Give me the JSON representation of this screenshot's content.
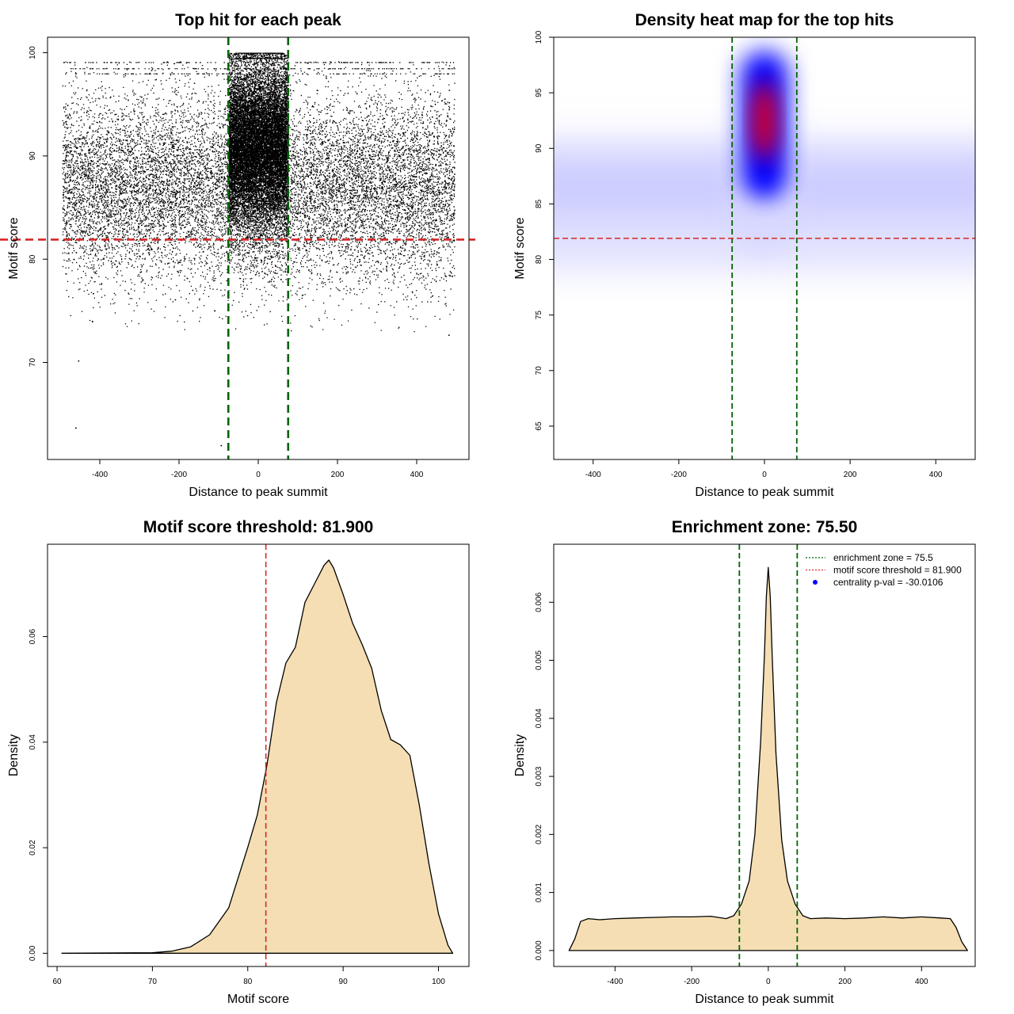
{
  "chart_data": [
    {
      "type": "scatter",
      "title": "Top hit for each peak",
      "xlabel": "Distance to peak summit",
      "ylabel": "Motif score",
      "xlim": [
        -532,
        532
      ],
      "ylim": [
        60.6,
        101.5
      ],
      "xticks": [
        -400,
        -200,
        0,
        200,
        400
      ],
      "yticks": [
        70,
        80,
        90,
        100
      ],
      "xtick_labels": [
        "-400",
        "-200",
        "0",
        "200",
        "400"
      ],
      "ytick_labels": [
        "70",
        "80",
        "90",
        "100"
      ],
      "vlines": [
        -75.5,
        75.5
      ],
      "hline": 81.9,
      "line_colors": {
        "enrichment": "#006400",
        "threshold": "#d62728"
      },
      "points_description_background": {
        "x_range": [
          -495,
          495
        ],
        "score_mean": 87,
        "score_sd": 4.5
      },
      "points_description_central": {
        "x_range": [
          -75,
          75
        ],
        "score_mean": 91,
        "score_sd": 4
      },
      "outliers": [
        [
          -455,
          70.2
        ],
        [
          -462,
          63.7
        ],
        [
          -95,
          62.0
        ],
        [
          -420,
          74.0
        ],
        [
          480,
          72.7
        ]
      ]
    },
    {
      "type": "heatmap",
      "title": "Density heat map for the top hits",
      "xlabel": "Distance to peak summit",
      "ylabel": "Motif score",
      "xlim": [
        -492,
        492
      ],
      "ylim": [
        62,
        100
      ],
      "xticks": [
        -400,
        -200,
        0,
        200,
        400
      ],
      "yticks": [
        65,
        70,
        75,
        80,
        85,
        90,
        95,
        100
      ],
      "xtick_labels": [
        "-400",
        "-200",
        "0",
        "200",
        "400"
      ],
      "ytick_labels": [
        "65",
        "70",
        "75",
        "80",
        "85",
        "90",
        "95",
        "100"
      ],
      "vlines": [
        -75.5,
        75.5
      ],
      "hline": 81.9,
      "colors": [
        "#ffffff",
        "#0000ff",
        "#ff0000"
      ],
      "hotspot": {
        "x": 0,
        "y": 92.5
      }
    },
    {
      "type": "area",
      "title": "Motif score threshold: 81.900",
      "xlabel": "Motif score",
      "ylabel": "Density",
      "xlim": [
        59,
        103.2
      ],
      "ylim": [
        -0.0025,
        0.0775
      ],
      "xticks": [
        60,
        70,
        80,
        90,
        100
      ],
      "yticks": [
        0.0,
        0.02,
        0.04,
        0.06
      ],
      "xtick_labels": [
        "60",
        "70",
        "80",
        "90",
        "100"
      ],
      "ytick_labels": [
        "0.00",
        "0.02",
        "0.04",
        "0.06"
      ],
      "vline": 81.9,
      "fill": "#f5deb3",
      "x": [
        60.5,
        70,
        72,
        74,
        76,
        78,
        80,
        81,
        82,
        83,
        84,
        85,
        86,
        87,
        88,
        88.5,
        89,
        90,
        91,
        92,
        93,
        94,
        95,
        96,
        97,
        98,
        99,
        100,
        101,
        101.5
      ],
      "y": [
        0,
        0.0001,
        0.0004,
        0.0012,
        0.0035,
        0.0086,
        0.0201,
        0.0262,
        0.0355,
        0.0475,
        0.055,
        0.058,
        0.0665,
        0.07,
        0.0735,
        0.0745,
        0.073,
        0.068,
        0.0625,
        0.0585,
        0.054,
        0.046,
        0.0405,
        0.0395,
        0.0375,
        0.028,
        0.017,
        0.0075,
        0.0015,
        0
      ]
    },
    {
      "type": "area",
      "title": "Enrichment zone: 75.50",
      "xlabel": "Distance to peak summit",
      "ylabel": "Density",
      "xlim": [
        -560,
        540
      ],
      "ylim": [
        -0.000275,
        0.007
      ],
      "xticks": [
        -400,
        -200,
        0,
        200,
        400
      ],
      "yticks": [
        0.0,
        0.001,
        0.002,
        0.003,
        0.004,
        0.005,
        0.006
      ],
      "xtick_labels": [
        "-400",
        "-200",
        "0",
        "200",
        "400"
      ],
      "ytick_labels": [
        "0.000",
        "0.001",
        "0.002",
        "0.003",
        "0.004",
        "0.005",
        "0.006"
      ],
      "vlines": [
        -75.5,
        75.5
      ],
      "fill": "#f5deb3",
      "x": [
        -520,
        -505,
        -490,
        -470,
        -440,
        -400,
        -350,
        -300,
        -250,
        -200,
        -150,
        -110,
        -90,
        -70,
        -50,
        -35,
        -20,
        -10,
        -5,
        0,
        5,
        10,
        20,
        35,
        50,
        70,
        90,
        110,
        150,
        200,
        250,
        300,
        350,
        400,
        450,
        475,
        490,
        505,
        520
      ],
      "y": [
        0.0,
        0.0002,
        0.0005,
        0.00055,
        0.00053,
        0.00055,
        0.00056,
        0.00057,
        0.00058,
        0.00058,
        0.00059,
        0.00055,
        0.0006,
        0.0008,
        0.0012,
        0.002,
        0.0036,
        0.0051,
        0.0061,
        0.0066,
        0.0061,
        0.0051,
        0.0034,
        0.0019,
        0.0012,
        0.0008,
        0.0006,
        0.00055,
        0.00056,
        0.00055,
        0.00056,
        0.00058,
        0.00056,
        0.00058,
        0.00056,
        0.00055,
        0.0004,
        0.00015,
        0.0
      ],
      "legend": [
        {
          "label": "enrichment zone = 75.5",
          "color": "#006400",
          "kind": "dotted-line"
        },
        {
          "label": "motif score threshold = 81.900",
          "color": "#d62728",
          "kind": "dotted-line"
        },
        {
          "label": "centrality p-val = -30.0106",
          "color": "#0000ff",
          "kind": "dot"
        }
      ],
      "legend_position": "top-right"
    }
  ]
}
